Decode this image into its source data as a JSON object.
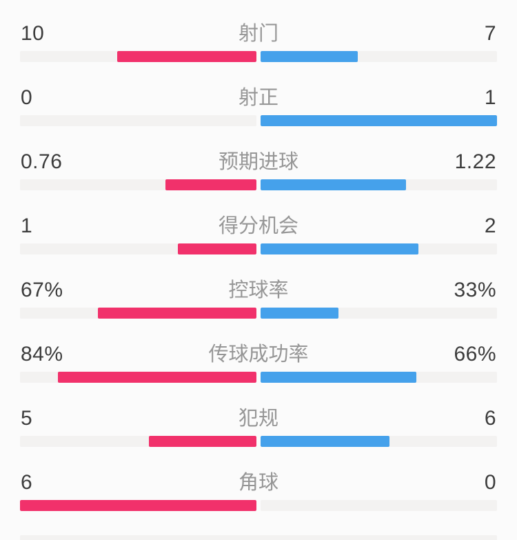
{
  "chart_data": {
    "type": "bar",
    "variant": "paired-horizontal-comparison",
    "title": "",
    "categories": [
      "射门",
      "射正",
      "预期进球",
      "得分机会",
      "控球率",
      "传球成功率",
      "犯规",
      "角球"
    ],
    "series": [
      {
        "name": "team-left",
        "side": "left",
        "color": "#F1316B",
        "values": [
          10,
          0,
          0.76,
          1,
          67,
          84,
          5,
          6
        ],
        "display": [
          "10",
          "0",
          "0.76",
          "1",
          "67%",
          "84%",
          "5",
          "6"
        ]
      },
      {
        "name": "team-right",
        "side": "right",
        "color": "#45A1EB",
        "values": [
          7,
          1,
          1.22,
          2,
          33,
          66,
          6,
          0
        ],
        "display": [
          "7",
          "1",
          "1.22",
          "2",
          "33%",
          "66%",
          "6",
          "0"
        ]
      }
    ],
    "percent_row_indices": [
      4,
      5
    ],
    "legend_position": "none",
    "grid": false,
    "axis_labels": [],
    "next_row_partial_track_visible": true
  },
  "colors": {
    "left_bar": "#F1316B",
    "right_bar": "#45A1EB",
    "track": "#F3F2F1",
    "background": "#FBFBFB",
    "stat_label_text": "#969696",
    "value_text": "#3C3C3C"
  }
}
